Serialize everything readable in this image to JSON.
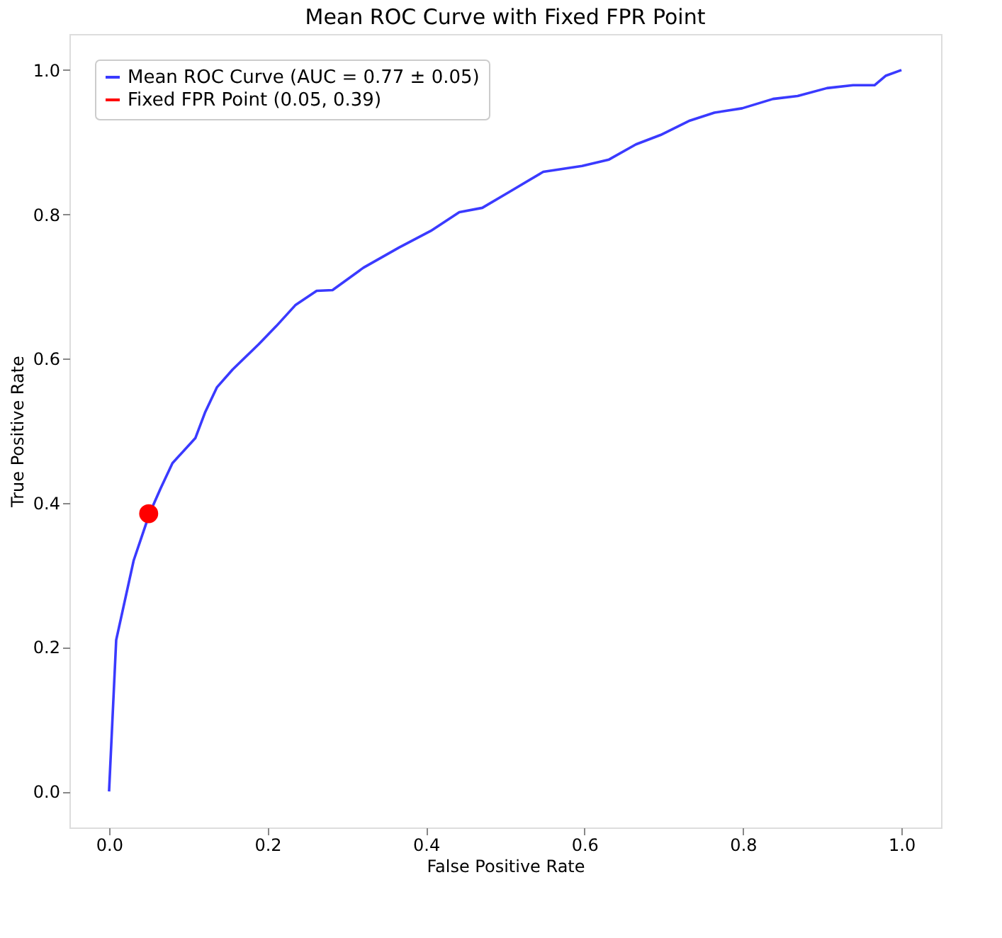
{
  "chart_data": {
    "type": "line",
    "title": "Mean ROC Curve with Fixed FPR Point",
    "xlabel": "False Positive Rate",
    "ylabel": "True Positive Rate",
    "x": [
      0,
      0.009,
      0.031,
      0.051,
      0.065,
      0.08,
      0.109,
      0.121,
      0.136,
      0.156,
      0.189,
      0.211,
      0.235,
      0.262,
      0.282,
      0.321,
      0.366,
      0.406,
      0.442,
      0.471,
      0.505,
      0.548,
      0.597,
      0.631,
      0.665,
      0.696,
      0.733,
      0.764,
      0.799,
      0.838,
      0.869,
      0.906,
      0.939,
      0.966,
      0.98,
      1
    ],
    "series": [
      {
        "name": "Mean ROC Curve (AUC = 0.77 ± 0.05)",
        "color": "#3a3aff",
        "marker": "none",
        "values": [
          0,
          0.21,
          0.32,
          0.385,
          0.42,
          0.455,
          0.49,
          0.525,
          0.56,
          0.585,
          0.62,
          0.645,
          0.674,
          0.694,
          0.695,
          0.726,
          0.754,
          0.777,
          0.803,
          0.809,
          0.831,
          0.859,
          0.867,
          0.876,
          0.897,
          0.91,
          0.93,
          0.941,
          0.947,
          0.96,
          0.964,
          0.975,
          0.979,
          0.979,
          0.992,
          1
        ]
      },
      {
        "name": "Fixed FPR Point (0.05, 0.39)",
        "type": "scatter",
        "color": "#ff0000",
        "marker": "circle",
        "x": [
          0.05
        ],
        "values": [
          0.385
        ]
      }
    ],
    "xlim": [
      -0.05,
      1.05
    ],
    "ylim": [
      -0.05,
      1.05
    ],
    "xticks": [
      {
        "value": 0,
        "label": "0.0"
      },
      0.2,
      0.4,
      0.6,
      0.8,
      {
        "value": 1,
        "label": "1.0"
      }
    ],
    "yticks": [
      {
        "value": 0,
        "label": "0.0"
      },
      0.2,
      0.4,
      0.6,
      0.8,
      {
        "value": 1,
        "label": "1.0"
      }
    ],
    "grid": false,
    "legend": "top left"
  }
}
